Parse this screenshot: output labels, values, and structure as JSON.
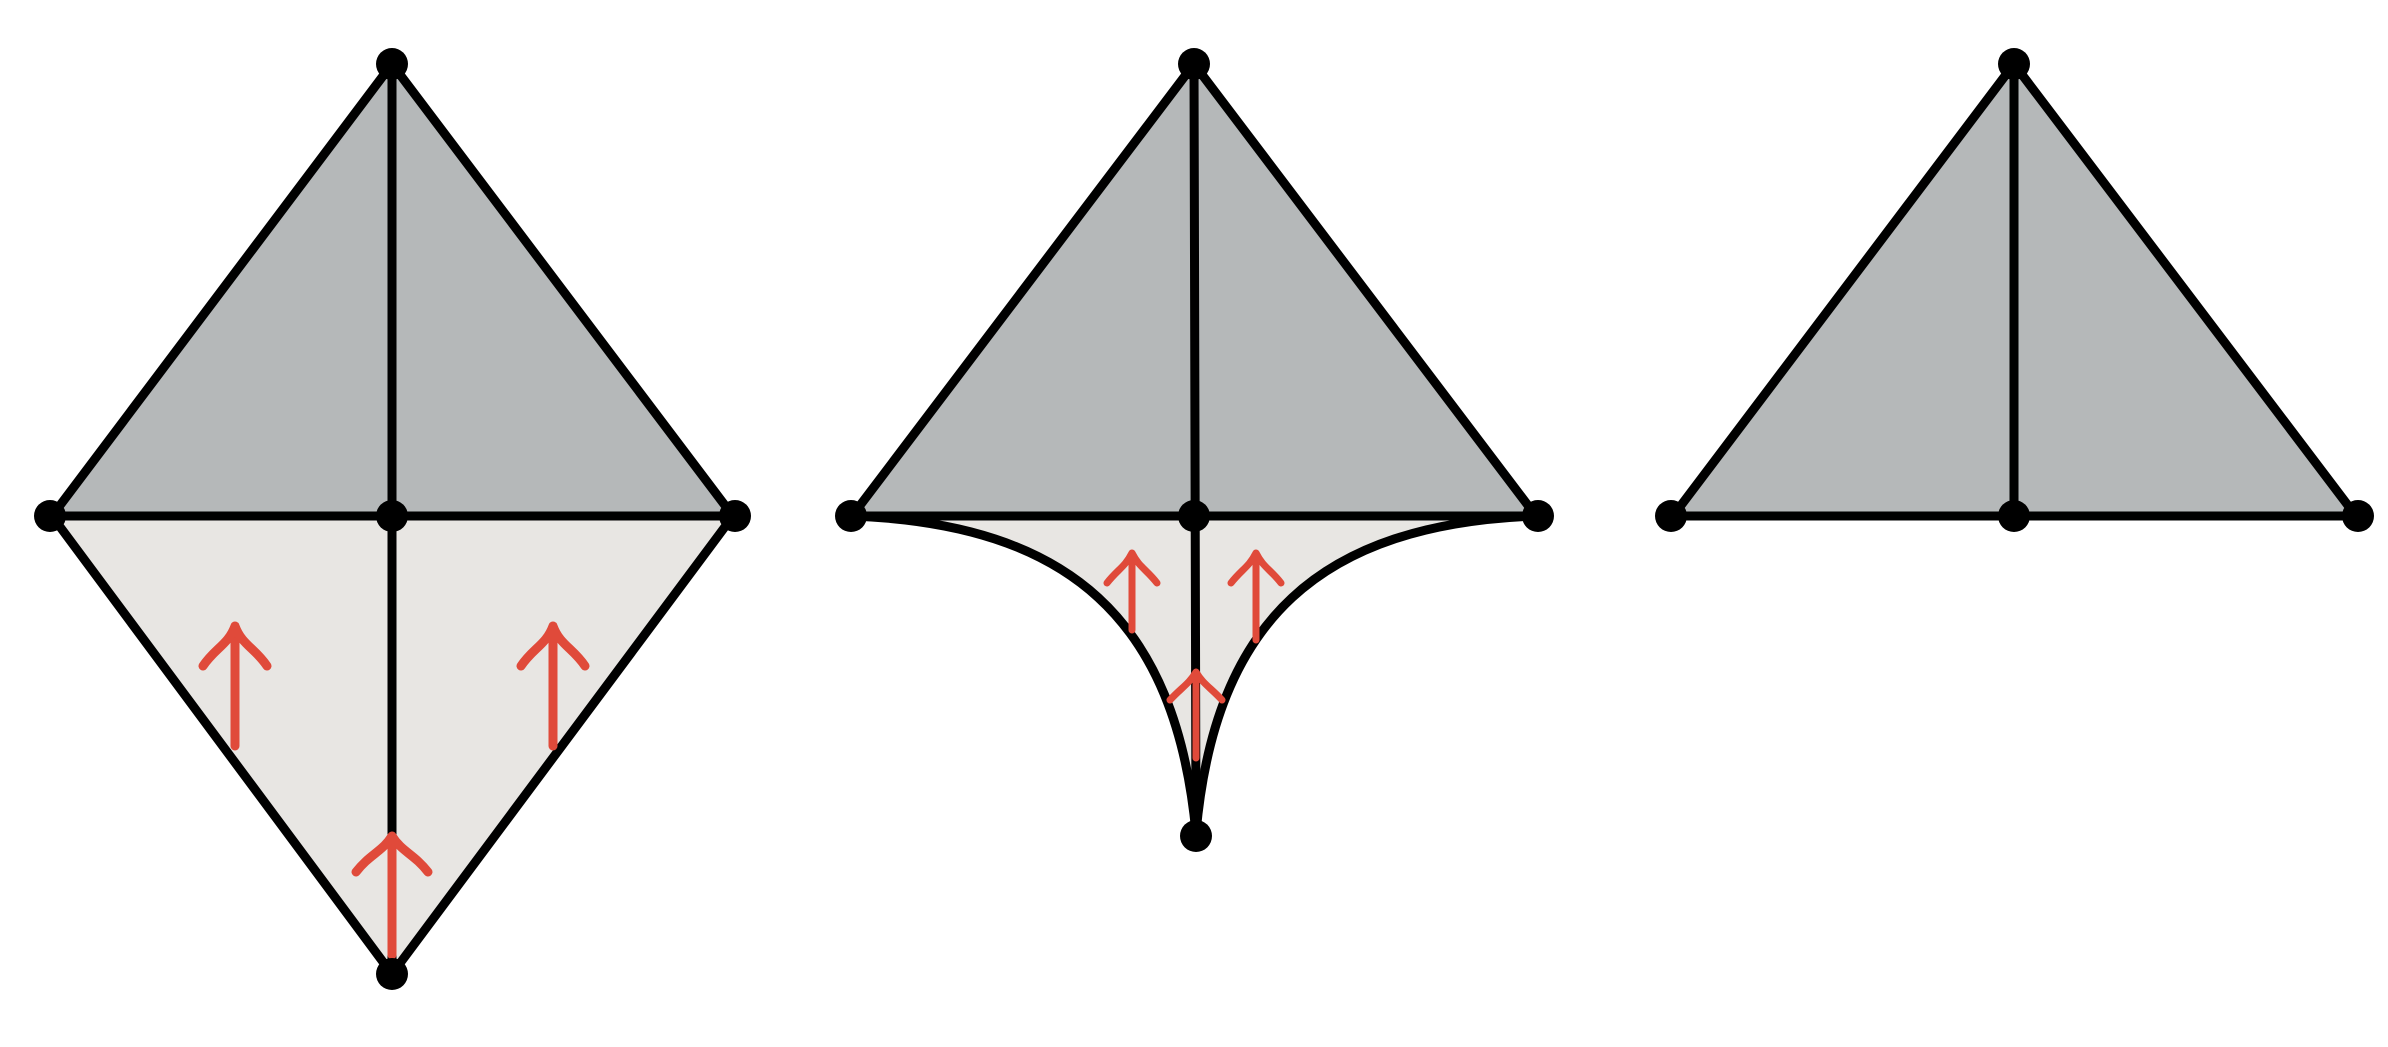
{
  "colors": {
    "background": "#ffffff",
    "upper_fill": "#b5b8b9",
    "lower_fill": "#e8e6e3",
    "stroke": "#000000",
    "arrow": "#e04a3a"
  },
  "panels": [
    {
      "name": "panel-1-full-diamond",
      "stage": "full",
      "arrow_count": 3
    },
    {
      "name": "panel-2-collapsing",
      "stage": "collapsing",
      "arrow_count": 3
    },
    {
      "name": "panel-3-collapsed",
      "stage": "collapsed",
      "arrow_count": 0
    }
  ],
  "icons": {
    "vertex": "vertex-dot-icon",
    "arrow": "up-arrow-icon"
  }
}
